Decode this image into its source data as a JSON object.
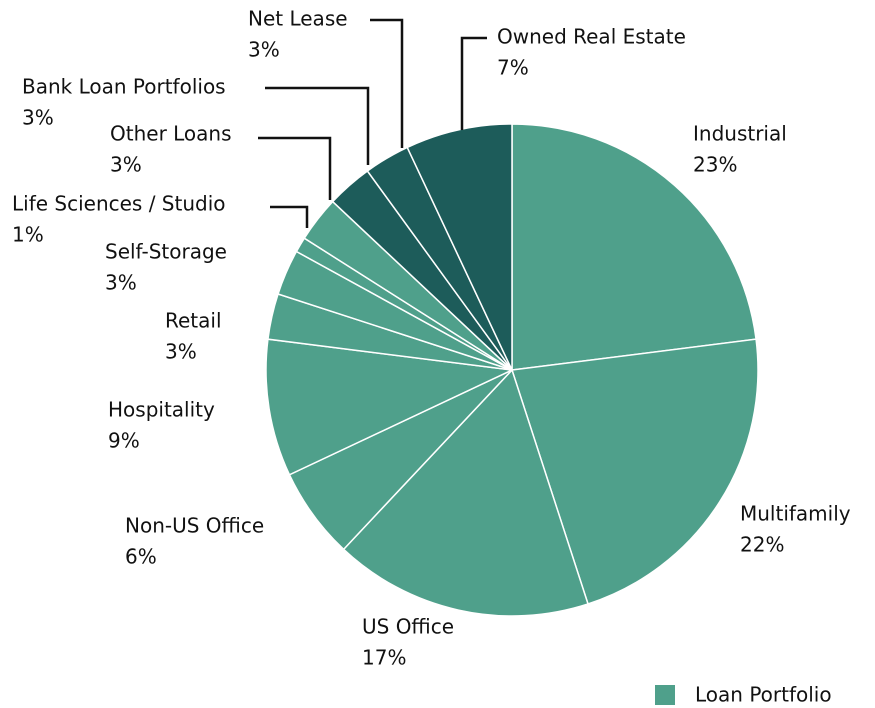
{
  "chart_data": {
    "type": "pie",
    "categories": [
      "Industrial",
      "Multifamily",
      "US Office",
      "Non-US Office",
      "Hospitality",
      "Retail",
      "Self-Storage",
      "Life Sciences / Studio",
      "Other Loans",
      "Bank Loan Portfolios",
      "Net Lease",
      "Owned Real Estate"
    ],
    "values": [
      23,
      22,
      17,
      6,
      9,
      3,
      3,
      1,
      3,
      3,
      3,
      7
    ],
    "value_labels": [
      "23%",
      "22%",
      "17%",
      "6%",
      "9%",
      "3%",
      "3%",
      "1%",
      "3%",
      "3%",
      "3%",
      "7%"
    ],
    "colors": [
      "#4fa08b",
      "#4fa08b",
      "#4fa08b",
      "#4fa08b",
      "#4fa08b",
      "#4fa08b",
      "#4fa08b",
      "#4fa08b",
      "#4fa08b",
      "#1d5c5a",
      "#1d5c5a",
      "#1d5c5a"
    ],
    "legend": {
      "label": "Loan Portfolio",
      "color": "#4fa08b"
    }
  }
}
